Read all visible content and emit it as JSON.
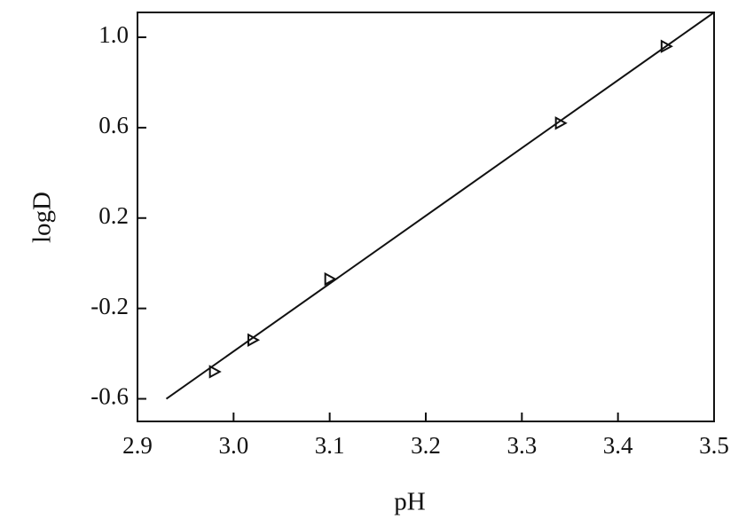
{
  "chart_data": {
    "type": "scatter",
    "xlabel": "pH",
    "ylabel": "logD",
    "xlim": [
      2.9,
      3.5
    ],
    "ylim": [
      -0.7,
      1.11
    ],
    "xticks": [
      2.9,
      {
        "value": 3.0,
        "label": "3.0"
      },
      3.1,
      3.2,
      3.3,
      3.4,
      3.5
    ],
    "yticks": [
      -0.6,
      -0.2,
      0.2,
      0.6,
      {
        "value": 1.0,
        "label": "1.0"
      }
    ],
    "series": [
      {
        "mode": "markers",
        "color": "#111111",
        "x": [
          2.98,
          3.02,
          3.1,
          3.34,
          3.45
        ],
        "values": [
          -0.48,
          -0.34,
          -0.07,
          0.62,
          0.96
        ]
      },
      {
        "mode": "line",
        "color": "#111111",
        "x": [
          2.93,
          3.5
        ],
        "values": [
          -0.6,
          1.11
        ]
      }
    ]
  }
}
